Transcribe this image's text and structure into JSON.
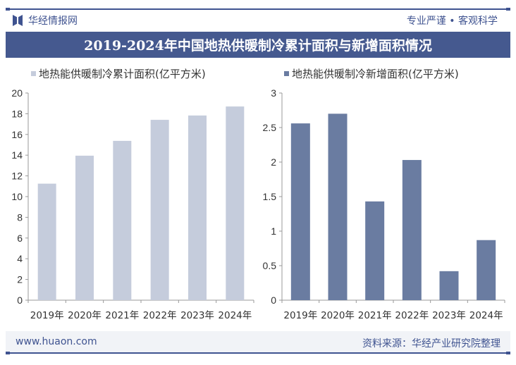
{
  "header": {
    "brand": "华经情报网",
    "slogan": "专业严谨 • 客观科学"
  },
  "title": "2019-2024年中国地热供暖制冷累计面积与新增面积情况",
  "footer": {
    "url": "www.huaon.com",
    "source": "资料来源：华经产业研究院整理"
  },
  "colors": {
    "brand": "#3f5390",
    "title_bg": "#45598f",
    "cumulative": "#c5ccdc",
    "new": "#6a7ca1"
  },
  "chart_data": [
    {
      "type": "bar",
      "categories": [
        "2019年",
        "2020年",
        "2021年",
        "2022年",
        "2023年",
        "2024年"
      ],
      "series": [
        {
          "name": "地热能供暖制冷累计面积(亿平方米)",
          "values": [
            11.25,
            13.95,
            15.38,
            17.41,
            17.83,
            18.7
          ]
        }
      ],
      "ylim": [
        0,
        20
      ],
      "yticks": [
        "0",
        "2",
        "4",
        "6",
        "8",
        "10",
        "12",
        "14",
        "16",
        "18",
        "20"
      ],
      "legend": "top-left",
      "grid": false
    },
    {
      "type": "bar",
      "categories": [
        "2019年",
        "2020年",
        "2021年",
        "2022年",
        "2023年",
        "2024年"
      ],
      "series": [
        {
          "name": "地热能供暖制冷新增面积(亿平方米)",
          "values": [
            2.56,
            2.7,
            1.43,
            2.03,
            0.42,
            0.87
          ]
        }
      ],
      "ylim": [
        0,
        3
      ],
      "yticks": [
        "0",
        "0.5",
        "1",
        "1.5",
        "2",
        "2.5",
        "3"
      ],
      "legend": "top-left",
      "grid": false
    }
  ]
}
